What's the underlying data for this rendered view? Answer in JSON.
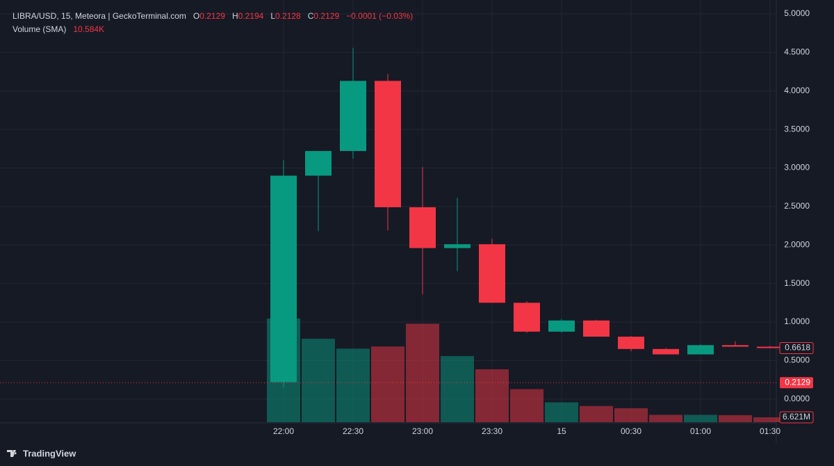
{
  "chart_data": {
    "type": "candlestick",
    "title": "LIBRA/USD, 15, Meteora | GeckoTerminal.com",
    "ohlc_legend": {
      "o_label": "O",
      "o": "0.2129",
      "h_label": "H",
      "h": "0.2194",
      "l_label": "L",
      "l": "0.2128",
      "c_label": "C",
      "c": "0.2129",
      "change": "−0.0001 (−0.03%)"
    },
    "volume_legend": {
      "name": "Volume (SMA)",
      "value": "10.584K"
    },
    "categories": [
      "22:00",
      null,
      "22:30",
      null,
      "23:00",
      null,
      "23:30",
      null,
      "15",
      null,
      "00:30",
      null,
      "01:00",
      null,
      "01:30"
    ],
    "open": [
      0.22,
      2.9,
      3.22,
      4.13,
      2.49,
      1.96,
      2.01,
      1.25,
      0.875,
      1.02,
      0.81,
      0.65,
      0.58,
      0.7,
      0.68
    ],
    "high": [
      3.1,
      3.22,
      4.56,
      4.22,
      3.01,
      2.61,
      2.08,
      1.27,
      1.04,
      1.03,
      0.82,
      0.66,
      0.71,
      0.75,
      0.69
    ],
    "low": [
      0.15,
      2.18,
      3.12,
      2.19,
      1.36,
      1.66,
      1.25,
      0.86,
      0.86,
      0.81,
      0.62,
      0.58,
      0.58,
      0.68,
      0.66
    ],
    "close": [
      2.9,
      3.22,
      4.13,
      2.49,
      1.96,
      2.01,
      1.25,
      0.875,
      1.02,
      0.81,
      0.65,
      0.58,
      0.7,
      0.68,
      0.6618
    ],
    "volume": [
      141000000,
      113500000,
      100000000,
      103000000,
      134000000,
      90000000,
      72000000,
      45000000,
      27000000,
      22000000,
      19000000,
      10000000,
      10000000,
      9500000,
      6621000
    ],
    "volume_value_labels": [
      null,
      null,
      null,
      null,
      null,
      null,
      null,
      null,
      null,
      null,
      null,
      null,
      null,
      null,
      "6.621M"
    ],
    "up_color": "#089981",
    "down_color": "#f23645",
    "last_price": 0.2129,
    "ylim": [
      -0.3,
      5.18
    ],
    "yticks": [
      {
        "value": 0,
        "label": "0.0000"
      },
      {
        "value": 0.5,
        "label": "0.5000"
      },
      {
        "value": 1,
        "label": "1.0000"
      },
      {
        "value": 1.5,
        "label": "1.5000"
      },
      {
        "value": 2,
        "label": "2.0000"
      },
      {
        "value": 2.5,
        "label": "2.5000"
      },
      {
        "value": 3,
        "label": "3.0000"
      },
      {
        "value": 3.5,
        "label": "3.5000"
      },
      {
        "value": 4,
        "label": "4.0000"
      },
      {
        "value": 4.5,
        "label": "4.5000"
      },
      {
        "value": 5,
        "label": "5.0000"
      }
    ],
    "grid": true,
    "footer": "TradingView"
  }
}
